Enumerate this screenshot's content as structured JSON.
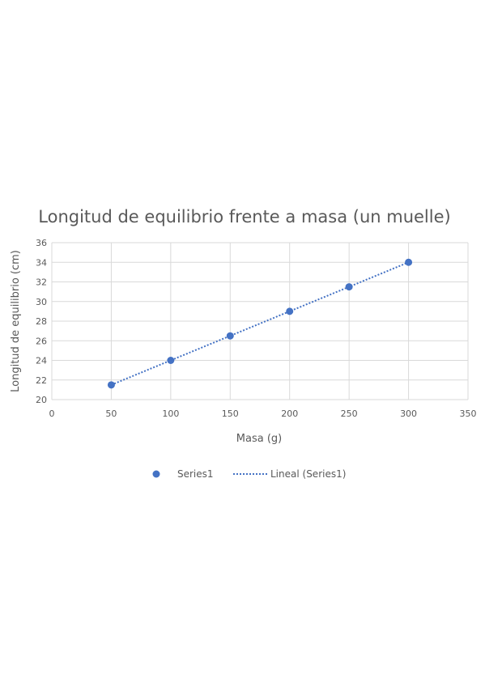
{
  "chart_data": {
    "type": "scatter",
    "title": "Longitud de equilibrio frente a masa (un muelle)",
    "xlabel": "Masa (g)",
    "ylabel": "Longitud de equilibrio (cm)",
    "xlim": [
      0,
      350
    ],
    "ylim": [
      20,
      36
    ],
    "xticks": [
      0,
      50,
      100,
      150,
      200,
      250,
      300,
      350
    ],
    "yticks": [
      20,
      22,
      24,
      26,
      28,
      30,
      32,
      34,
      36
    ],
    "grid": true,
    "legend_position": "bottom",
    "series": [
      {
        "name": "Series1",
        "color": "#4472C4",
        "x": [
          50,
          100,
          150,
          200,
          250,
          300
        ],
        "y": [
          21.5,
          24,
          26.5,
          29,
          31.5,
          34
        ]
      }
    ],
    "trendline": {
      "name": "Lineal (Series1)",
      "color": "#4472C4",
      "style": "dotted",
      "x": [
        50,
        300
      ],
      "y": [
        21.5,
        34
      ]
    }
  }
}
